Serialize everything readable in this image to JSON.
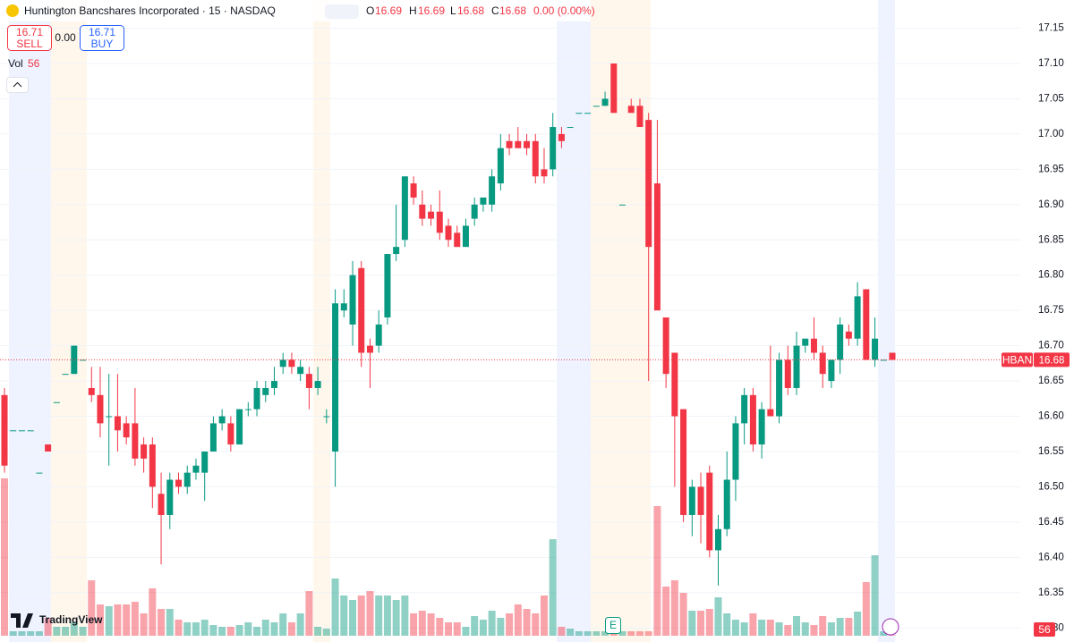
{
  "chart_data": {
    "type": "candlestick",
    "title": "Huntington Bancshares Incorporated · 15 · NASDAQ",
    "legend": {
      "o_label": "O",
      "o": "16.69",
      "h_label": "H",
      "h": "16.69",
      "l_label": "L",
      "l": "16.68",
      "c_label": "C",
      "c": "16.68",
      "change": "0.00 (0.00%)"
    },
    "trade": {
      "sell_price": "16.71",
      "sell": "SELL",
      "spread": "0.00",
      "buy_price": "16.71",
      "buy": "BUY"
    },
    "volume_label": "Vol",
    "symbol": "HBAN",
    "last_price": {
      "value": 16.68,
      "label": "16.68"
    },
    "earnings_marker": "E",
    "brand": "TradingView",
    "up_color": "#089981",
    "down_color": "#f23645",
    "ylim": [
      16.28,
      17.19
    ],
    "yticks": [
      17.15,
      {
        "value": 17.1,
        "label": "17.10"
      },
      17.05,
      {
        "value": 17,
        "label": "17.00"
      },
      16.95,
      {
        "value": 16.9,
        "label": "16.90"
      },
      16.85,
      {
        "value": 16.8,
        "label": "16.80"
      },
      16.75,
      {
        "value": 16.7,
        "label": "16.70"
      },
      16.65,
      {
        "value": 16.6,
        "label": "16.60"
      },
      16.55,
      {
        "value": 16.5,
        "label": "16.50"
      },
      16.45,
      {
        "value": 16.4,
        "label": "16.40"
      },
      16.35,
      {
        "value": 16.3,
        "label": "16.30"
      }
    ],
    "grid": true,
    "open": [
      16.63,
      16.58,
      16.58,
      16.58,
      16.52,
      16.56,
      16.62,
      16.66,
      16.66,
      16.68,
      16.64,
      16.63,
      16.6,
      16.6,
      16.59,
      16.59,
      16.56,
      16.56,
      16.49,
      16.46,
      16.51,
      16.5,
      16.52,
      16.52,
      16.55,
      16.59,
      16.59,
      16.56,
      16.61,
      16.61,
      16.63,
      16.64,
      16.67,
      16.68,
      16.66,
      16.66,
      16.64,
      16.6,
      16.55,
      16.75,
      16.73,
      16.81,
      16.7,
      16.7,
      16.74,
      16.83,
      16.85,
      16.93,
      16.9,
      16.89,
      16.89,
      16.87,
      16.86,
      16.84,
      16.88,
      16.9,
      16.9,
      16.93,
      16.99,
      16.99,
      16.99,
      16.99,
      16.95,
      16.95,
      17.0,
      17.01,
      17.03,
      17.03,
      17.04,
      17.04,
      17.1,
      16.9,
      17.04,
      17.04,
      17.02,
      16.93,
      16.74,
      16.69,
      16.61,
      16.46,
      16.5,
      16.52,
      16.41,
      16.44,
      16.51,
      16.59,
      16.63,
      16.56,
      16.61,
      16.6,
      16.68,
      16.64,
      16.7,
      16.71,
      16.69,
      16.65,
      16.68,
      16.72,
      16.71,
      16.78,
      16.68,
      16.68,
      16.69
    ],
    "high": [
      16.64,
      16.58,
      16.58,
      16.58,
      16.52,
      16.56,
      16.62,
      16.66,
      16.7,
      16.68,
      16.67,
      16.67,
      16.66,
      16.66,
      16.6,
      16.64,
      16.57,
      16.57,
      16.52,
      16.52,
      16.52,
      16.53,
      16.54,
      16.55,
      16.6,
      16.61,
      16.6,
      16.61,
      16.62,
      16.65,
      16.65,
      16.67,
      16.69,
      16.69,
      16.68,
      16.67,
      16.67,
      16.61,
      16.78,
      16.78,
      16.82,
      16.82,
      16.71,
      16.75,
      16.83,
      16.9,
      16.94,
      16.94,
      16.92,
      16.9,
      16.92,
      16.88,
      16.87,
      16.88,
      16.91,
      16.91,
      16.95,
      17.0,
      17.0,
      17.01,
      17.0,
      17.0,
      16.98,
      17.03,
      17.01,
      17.01,
      17.03,
      17.03,
      17.04,
      17.06,
      17.1,
      16.9,
      17.05,
      17.05,
      17.03,
      17.02,
      16.74,
      16.69,
      16.61,
      16.51,
      16.52,
      16.53,
      16.46,
      16.55,
      16.6,
      16.64,
      16.64,
      16.62,
      16.7,
      16.69,
      16.7,
      16.72,
      16.71,
      16.74,
      16.7,
      16.68,
      16.74,
      16.73,
      16.79,
      16.78,
      16.74,
      16.68,
      16.69
    ],
    "low": [
      16.52,
      16.58,
      16.58,
      16.58,
      16.52,
      16.55,
      16.62,
      16.66,
      16.66,
      16.68,
      16.62,
      16.57,
      16.53,
      16.55,
      16.56,
      16.53,
      16.52,
      16.47,
      16.39,
      16.44,
      16.49,
      16.49,
      16.51,
      16.48,
      16.55,
      16.58,
      16.55,
      16.56,
      16.6,
      16.6,
      16.62,
      16.63,
      16.66,
      16.66,
      16.65,
      16.61,
      16.63,
      16.59,
      16.5,
      16.74,
      16.7,
      16.67,
      16.64,
      16.69,
      16.73,
      16.82,
      16.84,
      16.9,
      16.87,
      16.87,
      16.85,
      16.84,
      16.84,
      16.84,
      16.87,
      16.89,
      16.89,
      16.92,
      16.97,
      16.98,
      16.97,
      16.93,
      16.93,
      16.94,
      16.98,
      17.01,
      17.03,
      17.03,
      17.04,
      17.04,
      17.03,
      16.9,
      17.03,
      17.01,
      16.65,
      16.75,
      16.64,
      16.5,
      16.45,
      16.43,
      16.42,
      16.4,
      16.36,
      16.43,
      16.48,
      16.56,
      16.55,
      16.54,
      16.6,
      16.59,
      16.63,
      16.63,
      16.69,
      16.68,
      16.64,
      16.64,
      16.66,
      16.7,
      16.7,
      16.68,
      16.67,
      16.68,
      16.68
    ],
    "close": [
      16.53,
      16.58,
      16.58,
      16.58,
      16.52,
      16.55,
      16.62,
      16.66,
      16.7,
      16.68,
      16.63,
      16.59,
      16.6,
      16.58,
      16.57,
      16.54,
      16.54,
      16.5,
      16.46,
      16.51,
      16.5,
      16.52,
      16.53,
      16.55,
      16.59,
      16.6,
      16.56,
      16.61,
      16.61,
      16.64,
      16.64,
      16.65,
      16.68,
      16.67,
      16.67,
      16.64,
      16.65,
      16.6,
      16.76,
      16.76,
      16.8,
      16.69,
      16.69,
      16.73,
      16.83,
      16.84,
      16.94,
      16.91,
      16.88,
      16.88,
      16.86,
      16.85,
      16.84,
      16.87,
      16.9,
      16.91,
      16.94,
      16.98,
      16.98,
      16.98,
      16.98,
      16.94,
      16.94,
      17.01,
      16.99,
      17.01,
      17.03,
      17.03,
      17.04,
      17.05,
      17.03,
      16.9,
      17.03,
      17.01,
      16.84,
      16.75,
      16.66,
      16.6,
      16.46,
      16.5,
      16.46,
      16.41,
      16.44,
      16.51,
      16.59,
      16.63,
      16.56,
      16.61,
      16.6,
      16.68,
      16.64,
      16.7,
      16.71,
      16.69,
      16.66,
      16.68,
      16.73,
      16.71,
      16.77,
      16.68,
      16.71,
      16.68,
      16.68
    ],
    "volume": [
      17600,
      500,
      500,
      500,
      500,
      2000,
      1000,
      1000,
      1500,
      1000,
      6200,
      3500,
      3300,
      3500,
      3500,
      3800,
      2500,
      5300,
      3000,
      3000,
      1800,
      1500,
      1500,
      1800,
      1200,
      1000,
      1000,
      1200,
      1500,
      1000,
      1800,
      1500,
      2500,
      1500,
      2500,
      5000,
      1000,
      800,
      6400,
      4500,
      4000,
      4500,
      5000,
      4500,
      4500,
      4000,
      4500,
      2500,
      2800,
      2500,
      2000,
      1500,
      1500,
      1000,
      2200,
      1800,
      2800,
      2000,
      2500,
      3500,
      3000,
      2500,
      4500,
      10800,
      1000,
      800,
      500,
      500,
      500,
      500,
      500,
      500,
      500,
      500,
      500,
      14500,
      5500,
      6200,
      4800,
      2800,
      2800,
      3000,
      4300,
      2500,
      1800,
      1500,
      2500,
      1800,
      1800,
      1500,
      1200,
      2200,
      1500,
      1200,
      2200,
      1500,
      2000,
      2000,
      2700,
      6000,
      9000,
      500,
      56
    ]
  }
}
